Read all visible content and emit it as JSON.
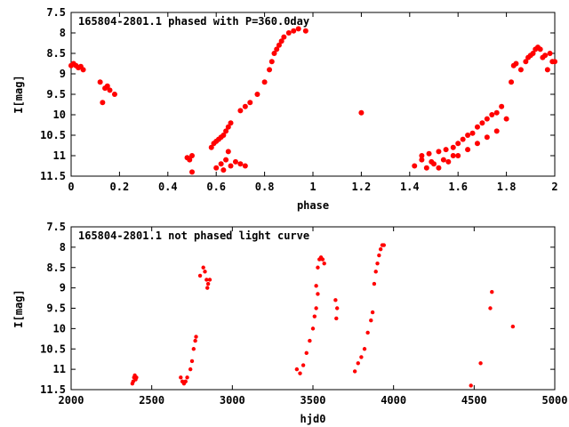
{
  "chart_data": [
    {
      "type": "scatter",
      "title": "165804-2801.1 phased with P=360.0day",
      "xlabel": "phase",
      "ylabel": "I[mag]",
      "xlim": [
        0,
        2
      ],
      "ylim": [
        11.5,
        7.5
      ],
      "y_inverted": true,
      "grid": false,
      "legend": "none",
      "marker_color": "#ff0000",
      "x_ticks": [
        "0",
        "0.2",
        "0.4",
        "0.6",
        "0.8",
        "1",
        "1.2",
        "1.4",
        "1.6",
        "1.8",
        "2"
      ],
      "y_ticks": [
        "7.5",
        "8",
        "8.5",
        "9",
        "9.5",
        "10",
        "10.5",
        "11",
        "11.5"
      ],
      "points": [
        [
          0.0,
          8.8
        ],
        [
          0.01,
          8.75
        ],
        [
          0.02,
          8.8
        ],
        [
          0.03,
          8.85
        ],
        [
          0.04,
          8.82
        ],
        [
          0.05,
          8.9
        ],
        [
          0.12,
          9.2
        ],
        [
          0.13,
          9.7
        ],
        [
          0.14,
          9.35
        ],
        [
          0.15,
          9.3
        ],
        [
          0.16,
          9.4
        ],
        [
          0.18,
          9.5
        ],
        [
          0.48,
          11.05
        ],
        [
          0.49,
          11.1
        ],
        [
          0.5,
          11.0
        ],
        [
          0.5,
          11.4
        ],
        [
          0.58,
          10.8
        ],
        [
          0.59,
          10.7
        ],
        [
          0.6,
          10.65
        ],
        [
          0.61,
          10.6
        ],
        [
          0.62,
          10.55
        ],
        [
          0.63,
          10.5
        ],
        [
          0.64,
          10.4
        ],
        [
          0.65,
          10.3
        ],
        [
          0.66,
          10.2
        ],
        [
          0.6,
          11.3
        ],
        [
          0.62,
          11.2
        ],
        [
          0.63,
          11.35
        ],
        [
          0.64,
          11.1
        ],
        [
          0.65,
          10.9
        ],
        [
          0.66,
          11.25
        ],
        [
          0.68,
          11.15
        ],
        [
          0.7,
          11.2
        ],
        [
          0.72,
          11.25
        ],
        [
          0.7,
          9.9
        ],
        [
          0.72,
          9.8
        ],
        [
          0.74,
          9.7
        ],
        [
          0.77,
          9.5
        ],
        [
          0.8,
          9.2
        ],
        [
          0.82,
          8.9
        ],
        [
          0.83,
          8.7
        ],
        [
          0.84,
          8.5
        ],
        [
          0.85,
          8.4
        ],
        [
          0.86,
          8.3
        ],
        [
          0.87,
          8.2
        ],
        [
          0.88,
          8.1
        ],
        [
          0.9,
          8.0
        ],
        [
          0.92,
          7.95
        ],
        [
          0.94,
          7.9
        ],
        [
          0.97,
          7.95
        ],
        [
          1.2,
          9.95
        ],
        [
          1.42,
          11.25
        ],
        [
          1.45,
          11.1
        ],
        [
          1.47,
          11.3
        ],
        [
          1.49,
          11.15
        ],
        [
          1.5,
          11.2
        ],
        [
          1.52,
          11.3
        ],
        [
          1.54,
          11.1
        ],
        [
          1.56,
          11.15
        ],
        [
          1.58,
          11.0
        ],
        [
          1.45,
          11.0
        ],
        [
          1.48,
          10.95
        ],
        [
          1.52,
          10.9
        ],
        [
          1.55,
          10.85
        ],
        [
          1.58,
          10.8
        ],
        [
          1.6,
          10.7
        ],
        [
          1.62,
          10.6
        ],
        [
          1.64,
          10.5
        ],
        [
          1.66,
          10.45
        ],
        [
          1.68,
          10.3
        ],
        [
          1.7,
          10.2
        ],
        [
          1.72,
          10.1
        ],
        [
          1.74,
          10.0
        ],
        [
          1.76,
          9.95
        ],
        [
          1.78,
          9.8
        ],
        [
          1.6,
          11.0
        ],
        [
          1.64,
          10.85
        ],
        [
          1.68,
          10.7
        ],
        [
          1.72,
          10.55
        ],
        [
          1.76,
          10.4
        ],
        [
          1.8,
          10.1
        ],
        [
          1.82,
          9.2
        ],
        [
          1.83,
          8.8
        ],
        [
          1.84,
          8.75
        ],
        [
          1.86,
          8.9
        ],
        [
          1.88,
          8.7
        ],
        [
          1.89,
          8.6
        ],
        [
          1.9,
          8.55
        ],
        [
          1.91,
          8.5
        ],
        [
          1.92,
          8.4
        ],
        [
          1.93,
          8.35
        ],
        [
          1.94,
          8.4
        ],
        [
          1.95,
          8.6
        ],
        [
          1.96,
          8.55
        ],
        [
          1.98,
          8.5
        ],
        [
          1.99,
          8.7
        ],
        [
          2.0,
          8.7
        ],
        [
          1.97,
          8.9
        ]
      ]
    },
    {
      "type": "scatter",
      "title": "165804-2801.1 not phased light curve",
      "xlabel": "hjd0",
      "ylabel": "I[mag]",
      "xlim": [
        2000,
        5000
      ],
      "ylim": [
        11.5,
        7.5
      ],
      "y_inverted": true,
      "grid": false,
      "legend": "none",
      "marker_color": "#ff0000",
      "x_ticks": [
        "2000",
        "2500",
        "3000",
        "3500",
        "4000",
        "4500",
        "5000"
      ],
      "y_ticks": [
        "7.5",
        "8",
        "8.5",
        "9",
        "9.5",
        "10",
        "10.5",
        "11",
        "11.5"
      ],
      "points": [
        [
          2380,
          11.35
        ],
        [
          2385,
          11.3
        ],
        [
          2390,
          11.2
        ],
        [
          2395,
          11.15
        ],
        [
          2400,
          11.25
        ],
        [
          2405,
          11.2
        ],
        [
          2680,
          11.2
        ],
        [
          2690,
          11.3
        ],
        [
          2700,
          11.35
        ],
        [
          2710,
          11.3
        ],
        [
          2720,
          11.2
        ],
        [
          2740,
          11.0
        ],
        [
          2750,
          10.8
        ],
        [
          2760,
          10.5
        ],
        [
          2770,
          10.3
        ],
        [
          2775,
          10.2
        ],
        [
          2800,
          8.7
        ],
        [
          2820,
          8.5
        ],
        [
          2830,
          8.6
        ],
        [
          2840,
          8.8
        ],
        [
          2850,
          8.9
        ],
        [
          2860,
          8.8
        ],
        [
          2845,
          9.0
        ],
        [
          3400,
          11.0
        ],
        [
          3420,
          11.1
        ],
        [
          3440,
          10.9
        ],
        [
          3460,
          10.6
        ],
        [
          3480,
          10.3
        ],
        [
          3500,
          10.0
        ],
        [
          3510,
          9.7
        ],
        [
          3520,
          9.5
        ],
        [
          3530,
          8.5
        ],
        [
          3540,
          8.3
        ],
        [
          3550,
          8.25
        ],
        [
          3560,
          8.3
        ],
        [
          3570,
          8.4
        ],
        [
          3520,
          8.95
        ],
        [
          3530,
          9.15
        ],
        [
          3640,
          9.3
        ],
        [
          3650,
          9.5
        ],
        [
          3645,
          9.75
        ],
        [
          3760,
          11.05
        ],
        [
          3780,
          10.85
        ],
        [
          3800,
          10.7
        ],
        [
          3820,
          10.5
        ],
        [
          3840,
          10.1
        ],
        [
          3860,
          9.8
        ],
        [
          3870,
          9.6
        ],
        [
          3880,
          8.9
        ],
        [
          3890,
          8.6
        ],
        [
          3900,
          8.4
        ],
        [
          3910,
          8.2
        ],
        [
          3920,
          8.05
        ],
        [
          3930,
          7.95
        ],
        [
          3940,
          7.95
        ],
        [
          4480,
          11.4
        ],
        [
          4540,
          10.85
        ],
        [
          4600,
          9.5
        ],
        [
          4610,
          9.1
        ],
        [
          4740,
          9.95
        ]
      ]
    }
  ]
}
